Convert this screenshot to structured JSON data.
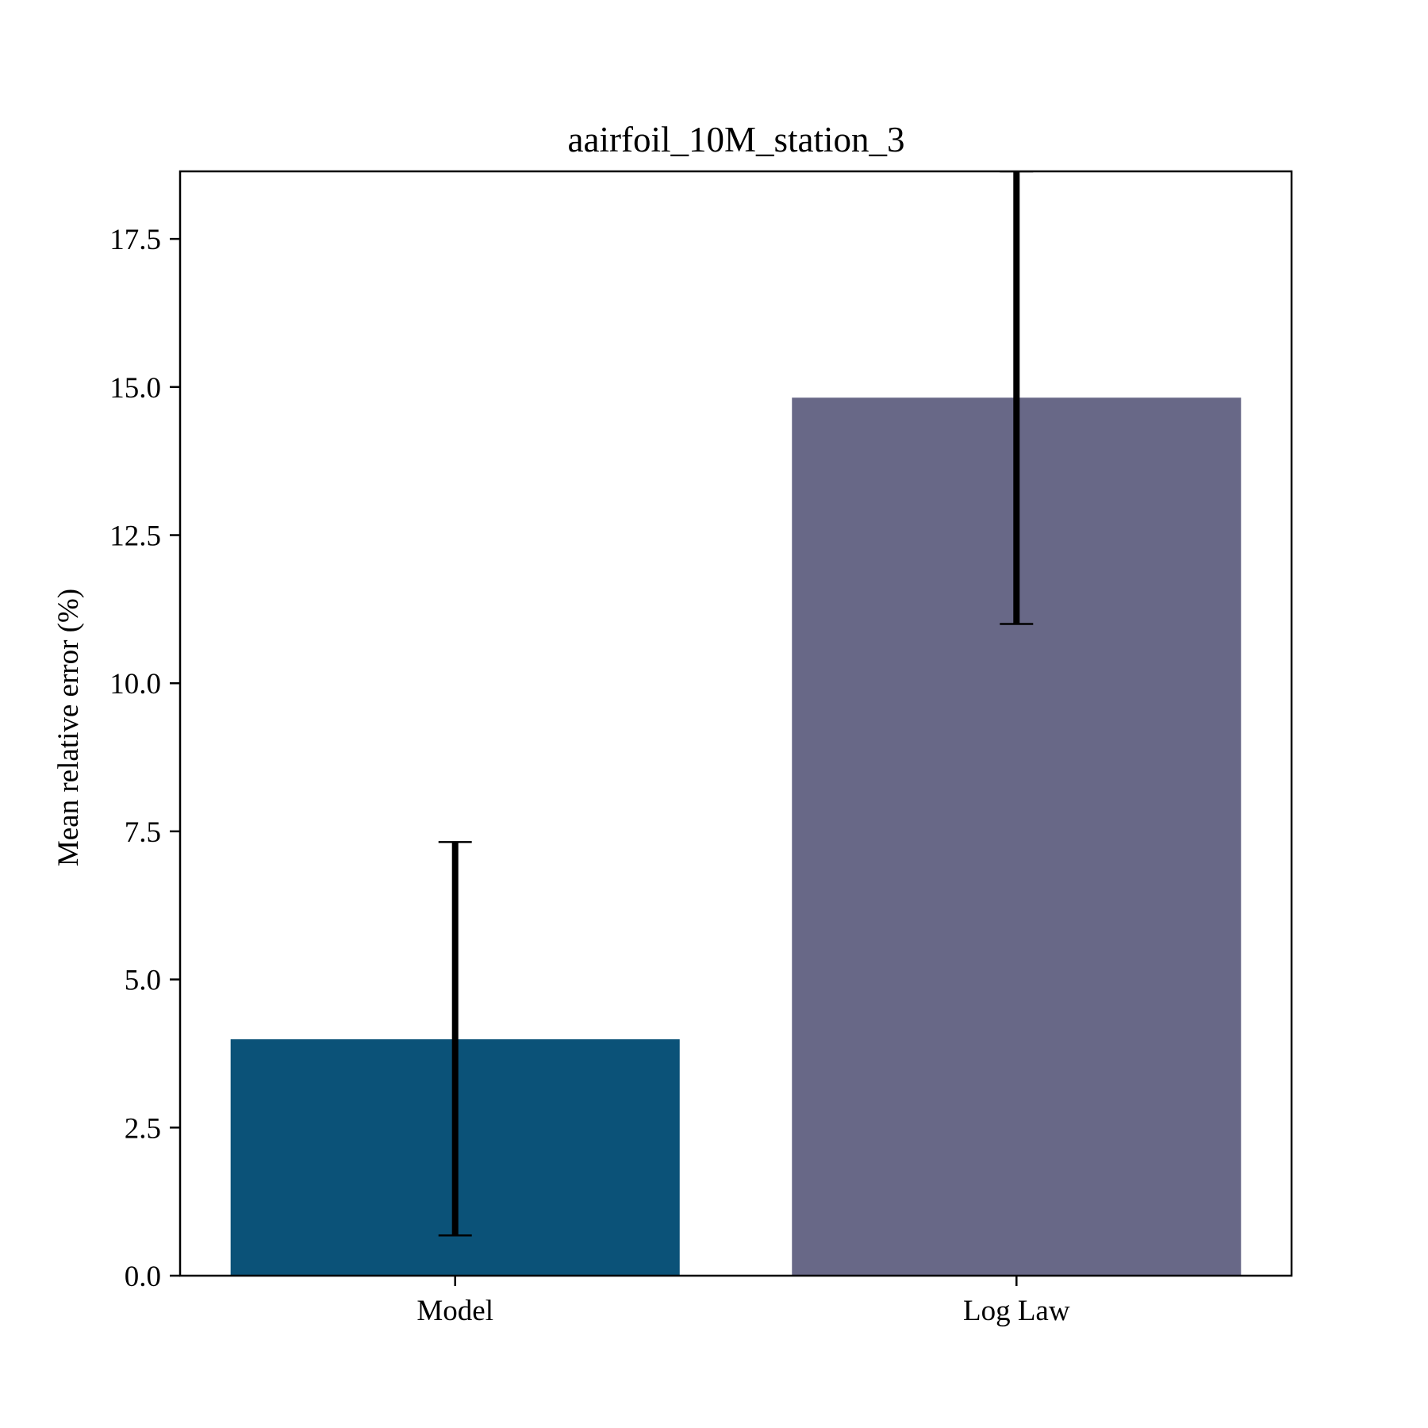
{
  "chart_data": {
    "type": "bar",
    "title": "aairfoil_10M_station_3",
    "xlabel": "",
    "ylabel": "Mean relative error (%)",
    "categories": [
      "Model",
      "Log Law"
    ],
    "values": [
      3.99,
      14.82
    ],
    "error_low": [
      0.68,
      11.0
    ],
    "error_high": [
      7.32,
      18.64
    ],
    "colors": [
      "#0b5278",
      "#686887"
    ],
    "ylim": [
      0,
      18.64
    ],
    "yticks": [
      0.0,
      2.5,
      5.0,
      7.5,
      10.0,
      12.5,
      15.0,
      17.5
    ],
    "ytick_labels": [
      "0.0",
      "2.5",
      "5.0",
      "7.5",
      "10.0",
      "12.5",
      "15.0",
      "17.5"
    ],
    "grid": false,
    "legend": "none"
  }
}
